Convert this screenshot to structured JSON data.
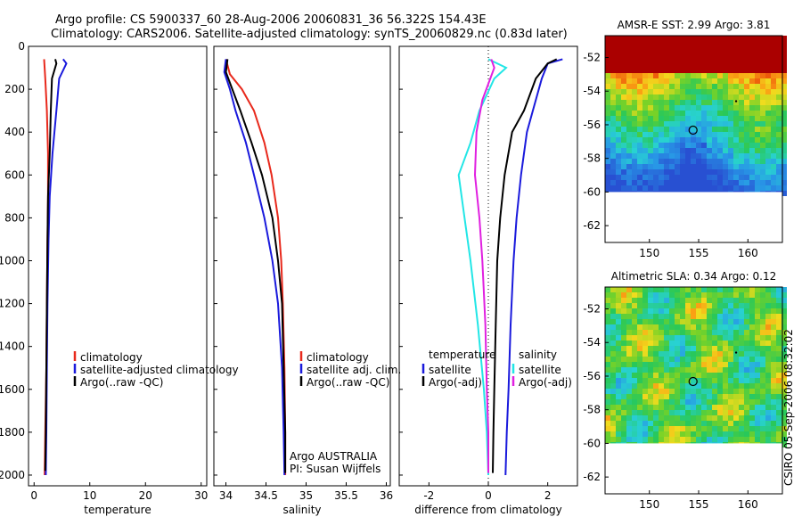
{
  "header": {
    "line1": "Argo profile: CS 5900337_60 28-Aug-2006 20060831_36 56.322S 154.43E",
    "line2": "Climatology: CARS2006. Satellite-adjusted climatology: synTS_20060829.nc (0.83d later)"
  },
  "side_text": "CSIRO 05-Sep-2006 08:32:02",
  "colors": {
    "red": "#e8291c",
    "blue": "#1a1adc",
    "black": "#000000",
    "cyan": "#22e6e6",
    "magenta": "#e020e0"
  },
  "chart_data": [
    {
      "type": "line",
      "name": "temperature-panel",
      "xlabel": "temperature",
      "xlim": [
        -1,
        31
      ],
      "ylim": [
        0,
        2050
      ],
      "xticks": [
        0,
        10,
        20,
        30
      ],
      "yticks": [
        0,
        200,
        400,
        600,
        800,
        1000,
        1200,
        1400,
        1600,
        1800,
        2000
      ],
      "y_reversed": true,
      "series": [
        {
          "name": "climatology",
          "color": "red",
          "points": [
            [
              1.8,
              60
            ],
            [
              2.0,
              150
            ],
            [
              2.3,
              300
            ],
            [
              2.5,
              500
            ],
            [
              2.5,
              700
            ],
            [
              2.4,
              900
            ],
            [
              2.3,
              1200
            ],
            [
              2.2,
              1500
            ],
            [
              2.0,
              1800
            ],
            [
              1.9,
              2000
            ]
          ]
        },
        {
          "name": "satellite-adjusted climatology",
          "color": "blue",
          "points": [
            [
              5.2,
              60
            ],
            [
              5.8,
              80
            ],
            [
              4.5,
              150
            ],
            [
              4.0,
              300
            ],
            [
              3.3,
              500
            ],
            [
              2.8,
              700
            ],
            [
              2.6,
              900
            ],
            [
              2.4,
              1200
            ],
            [
              2.3,
              1500
            ],
            [
              2.2,
              1800
            ],
            [
              2.1,
              2000
            ]
          ]
        },
        {
          "name": "Argo(..raw -QC)",
          "color": "black",
          "points": [
            [
              3.8,
              60
            ],
            [
              4.0,
              80
            ],
            [
              3.2,
              150
            ],
            [
              3.0,
              300
            ],
            [
              2.8,
              500
            ],
            [
              2.5,
              700
            ],
            [
              2.4,
              900
            ],
            [
              2.3,
              1200
            ],
            [
              2.2,
              1500
            ],
            [
              2.1,
              1800
            ],
            [
              2.0,
              1980
            ]
          ]
        }
      ],
      "legend": [
        "climatology",
        "satellite-adjusted climatology",
        "Argo(..raw -QC)"
      ]
    },
    {
      "type": "line",
      "name": "salinity-panel",
      "xlabel": "salinity",
      "xlim": [
        33.85,
        36.05
      ],
      "ylim": [
        0,
        2050
      ],
      "xticks": [
        34,
        34.5,
        35,
        35.5,
        36
      ],
      "xticklabels": [
        "34",
        "34.5",
        "35",
        "35.5",
        "36"
      ],
      "yticks": [
        0,
        200,
        400,
        600,
        800,
        1000,
        1200,
        1400,
        1600,
        1800,
        2000
      ],
      "y_reversed": true,
      "series": [
        {
          "name": "climatology",
          "color": "red",
          "points": [
            [
              34.0,
              60
            ],
            [
              34.05,
              130
            ],
            [
              34.2,
              200
            ],
            [
              34.35,
              300
            ],
            [
              34.48,
              450
            ],
            [
              34.57,
              600
            ],
            [
              34.65,
              800
            ],
            [
              34.69,
              1000
            ],
            [
              34.71,
              1200
            ],
            [
              34.73,
              1500
            ],
            [
              34.74,
              1800
            ],
            [
              34.74,
              2000
            ]
          ]
        },
        {
          "name": "satellite adj. clim.",
          "color": "blue",
          "points": [
            [
              34.0,
              60
            ],
            [
              33.98,
              120
            ],
            [
              34.05,
              200
            ],
            [
              34.12,
              300
            ],
            [
              34.25,
              450
            ],
            [
              34.35,
              600
            ],
            [
              34.48,
              800
            ],
            [
              34.58,
              1000
            ],
            [
              34.65,
              1200
            ],
            [
              34.7,
              1500
            ],
            [
              34.72,
              1800
            ],
            [
              34.73,
              2000
            ]
          ]
        },
        {
          "name": "Argo(..raw -QC)",
          "color": "black",
          "points": [
            [
              34.02,
              60
            ],
            [
              34.0,
              120
            ],
            [
              34.08,
              200
            ],
            [
              34.18,
              300
            ],
            [
              34.32,
              450
            ],
            [
              34.45,
              600
            ],
            [
              34.58,
              800
            ],
            [
              34.65,
              1000
            ],
            [
              34.7,
              1200
            ],
            [
              34.72,
              1500
            ],
            [
              34.74,
              1800
            ],
            [
              34.74,
              1990
            ]
          ]
        }
      ],
      "legend": [
        "climatology",
        "satellite adj. clim.",
        "Argo(..raw -QC)"
      ],
      "annotation": [
        "Argo AUSTRALIA",
        "PI: Susan Wijffels"
      ]
    },
    {
      "type": "line",
      "name": "difference-panel",
      "xlabel": "difference from climatology",
      "xlim": [
        -3,
        3
      ],
      "ylim": [
        0,
        2050
      ],
      "xticks": [
        -2,
        0,
        2
      ],
      "yticks": [
        0,
        200,
        400,
        600,
        800,
        1000,
        1200,
        1400,
        1600,
        1800,
        2000
      ],
      "y_reversed": true,
      "series": [
        {
          "name": "temperature satellite",
          "color": "blue",
          "points": [
            [
              2.5,
              60
            ],
            [
              2.0,
              80
            ],
            [
              1.8,
              150
            ],
            [
              1.6,
              250
            ],
            [
              1.3,
              400
            ],
            [
              1.1,
              600
            ],
            [
              0.95,
              800
            ],
            [
              0.85,
              1000
            ],
            [
              0.75,
              1300
            ],
            [
              0.68,
              1600
            ],
            [
              0.62,
              1800
            ],
            [
              0.58,
              2000
            ]
          ]
        },
        {
          "name": "temperature Argo(-adj)",
          "color": "black",
          "points": [
            [
              2.3,
              60
            ],
            [
              2.0,
              80
            ],
            [
              1.6,
              150
            ],
            [
              1.2,
              300
            ],
            [
              0.8,
              400
            ],
            [
              0.55,
              600
            ],
            [
              0.4,
              800
            ],
            [
              0.3,
              1000
            ],
            [
              0.25,
              1300
            ],
            [
              0.2,
              1600
            ],
            [
              0.17,
              1800
            ],
            [
              0.15,
              1990
            ]
          ]
        },
        {
          "name": "salinity satellite",
          "color": "cyan",
          "points": [
            [
              0.0,
              60
            ],
            [
              0.6,
              100
            ],
            [
              0.2,
              150
            ],
            [
              -0.3,
              300
            ],
            [
              -0.6,
              450
            ],
            [
              -1.0,
              600
            ],
            [
              -0.8,
              800
            ],
            [
              -0.6,
              1000
            ],
            [
              -0.35,
              1300
            ],
            [
              -0.15,
              1600
            ],
            [
              -0.05,
              1800
            ],
            [
              0.0,
              2000
            ]
          ]
        },
        {
          "name": "salinity Argo(-adj)",
          "color": "magenta",
          "points": [
            [
              0.1,
              60
            ],
            [
              0.2,
              100
            ],
            [
              -0.2,
              250
            ],
            [
              -0.4,
              400
            ],
            [
              -0.45,
              600
            ],
            [
              -0.3,
              800
            ],
            [
              -0.2,
              1000
            ],
            [
              -0.1,
              1300
            ],
            [
              -0.05,
              1600
            ],
            [
              0.0,
              1800
            ],
            [
              0.0,
              1990
            ]
          ]
        }
      ],
      "legend_heads": [
        "temperature",
        "salinity"
      ],
      "legend_left": [
        "satellite",
        "Argo(-adj)"
      ],
      "legend_right": [
        "satellite",
        "Argo(-adj)"
      ]
    },
    {
      "type": "heatmap",
      "name": "amsr-map",
      "title": "AMSR-E SST: 2.99 Argo: 3.81",
      "xticks": [
        150,
        155,
        160
      ],
      "yticks": [
        -52,
        -54,
        -56,
        -58,
        -60,
        -62
      ],
      "xlim": [
        145.5,
        163.5
      ],
      "ylim": [
        -63,
        -50.7
      ],
      "argo_marker": [
        154.43,
        -56.32
      ]
    },
    {
      "type": "heatmap",
      "name": "sla-map",
      "title": "Altimetric SLA: 0.34 Argo: 0.12",
      "xticks": [
        150,
        155,
        160
      ],
      "yticks": [
        -52,
        -54,
        -56,
        -58,
        -60,
        -62
      ],
      "xlim": [
        145.5,
        163.5
      ],
      "ylim": [
        -63,
        -50.7
      ],
      "argo_marker": [
        154.43,
        -56.32
      ]
    }
  ]
}
